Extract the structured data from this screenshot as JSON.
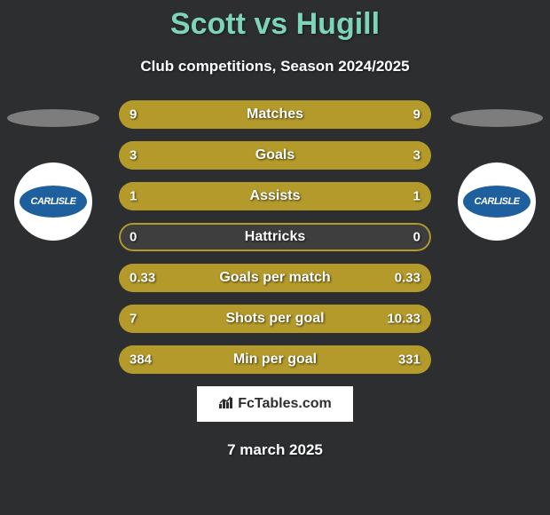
{
  "title": "Scott vs Hugill",
  "subtitle": "Club competitions, Season 2024/2025",
  "date": "7 march 2025",
  "footer_brand": "FcTables.com",
  "colors": {
    "background": "#2c2e2f",
    "title_color": "#7dd4b8",
    "text_color": "#ffffff",
    "bar_fill": "#b49a2a",
    "bar_bg": "#3e3e3e",
    "ellipse_shadow": "#7d7d7d",
    "badge_bg": "#ffffff",
    "badge_inner": "#1e5f9e",
    "footer_bg": "#ffffff"
  },
  "team_left": {
    "name": "CARLISLE"
  },
  "team_right": {
    "name": "CARLISLE"
  },
  "stats": [
    {
      "label": "Matches",
      "left_value": "9",
      "right_value": "9",
      "left_pct": 50,
      "right_pct": 50
    },
    {
      "label": "Goals",
      "left_value": "3",
      "right_value": "3",
      "left_pct": 50,
      "right_pct": 50
    },
    {
      "label": "Assists",
      "left_value": "1",
      "right_value": "1",
      "left_pct": 50,
      "right_pct": 50
    },
    {
      "label": "Hattricks",
      "left_value": "0",
      "right_value": "0",
      "left_pct": 0,
      "right_pct": 0
    },
    {
      "label": "Goals per match",
      "left_value": "0.33",
      "right_value": "0.33",
      "left_pct": 50,
      "right_pct": 50
    },
    {
      "label": "Shots per goal",
      "left_value": "7",
      "right_value": "10.33",
      "left_pct": 60,
      "right_pct": 40
    },
    {
      "label": "Min per goal",
      "left_value": "384",
      "right_value": "331",
      "left_pct": 46,
      "right_pct": 54
    }
  ]
}
